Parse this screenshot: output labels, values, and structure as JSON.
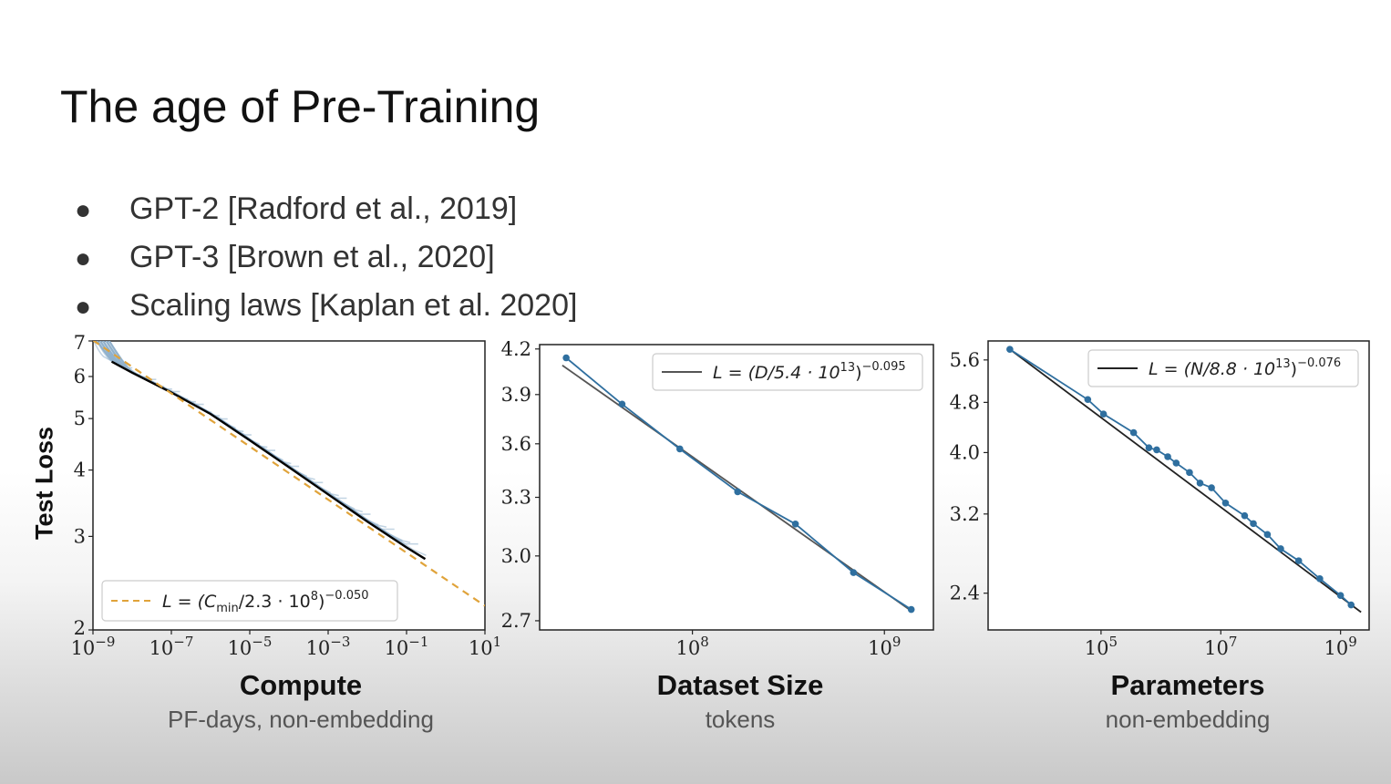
{
  "slide": {
    "title": "The age of Pre-Training",
    "bullets": [
      "GPT-2 [Radford et al., 2019]",
      "GPT-3 [Brown et al., 2020]",
      "Scaling laws [Kaplan et al. 2020]"
    ],
    "bullet_glyph": "●"
  },
  "chart_data": [
    {
      "type": "line",
      "xscale": "log",
      "yscale": "log",
      "xlim": [
        1e-09,
        10
      ],
      "ylim": [
        2,
        7
      ],
      "x_ticks": [
        {
          "base": "10",
          "exp": "−9"
        },
        {
          "base": "10",
          "exp": "−7"
        },
        {
          "base": "10",
          "exp": "−5"
        },
        {
          "base": "10",
          "exp": "−3"
        },
        {
          "base": "10",
          "exp": "−1"
        },
        {
          "base": "10",
          "exp": "1"
        }
      ],
      "y_ticks": [
        "2",
        "3",
        "4",
        "5",
        "6",
        "7"
      ],
      "ylabel": "Test Loss",
      "xlabel": "Compute",
      "xlabel_sub": "PF-days, non-embedding",
      "legend": {
        "placement": "bottom-left",
        "prefix": "L = (C",
        "sub": "min",
        "mid": "/2.3 · 10",
        "sup1": "8",
        "close": ")",
        "sup2": "−0.050"
      },
      "fit_color": "#e0a33a",
      "frontier_color": "#000000",
      "curve_color": "#8fb0cc",
      "fit": {
        "x": [
          1e-09,
          10
        ],
        "y": [
          7.02,
          2.22
        ]
      },
      "frontier": {
        "x": [
          3e-09,
          1e-08,
          1e-07,
          1e-06,
          1e-05,
          0.0001,
          0.001,
          0.01,
          0.1,
          0.3
        ],
        "y": [
          6.4,
          6.1,
          5.6,
          5.1,
          4.55,
          4.05,
          3.6,
          3.2,
          2.86,
          2.72
        ]
      },
      "learning_curves_count": 40
    },
    {
      "type": "line",
      "xscale": "log",
      "yscale": "log",
      "xlim": [
        16000000.0,
        1800000000.0
      ],
      "ylim": [
        2.66,
        4.23
      ],
      "x_ticks": [
        {
          "base": "10",
          "exp": "8",
          "value": 100000000.0
        },
        {
          "base": "10",
          "exp": "9",
          "value": 1000000000.0
        }
      ],
      "y_ticks": [
        "2.7",
        "3.0",
        "3.3",
        "3.6",
        "3.9",
        "4.2"
      ],
      "xlabel": "Dataset Size",
      "xlabel_sub": "tokens",
      "legend": {
        "placement": "top-right",
        "prefix": "L = (D/5.4 · 10",
        "sup1": "13",
        "close": ")",
        "sup2": "−0.095"
      },
      "series_color": "#2f6f9f",
      "fit_color": "#555555",
      "x": [
        22000000.0,
        43000000.0,
        86000000.0,
        172000000.0,
        344000000.0,
        690000000.0,
        1380000000.0
      ],
      "y": [
        4.14,
        3.84,
        3.57,
        3.33,
        3.16,
        2.92,
        2.75
      ],
      "fit": {
        "x": [
          21000000.0,
          1400000000.0
        ],
        "y": [
          4.09,
          2.74
        ]
      }
    },
    {
      "type": "line",
      "xscale": "log",
      "yscale": "log",
      "xlim": [
        1300.0,
        3000000000.0
      ],
      "ylim": [
        2.1,
        6.0
      ],
      "x_ticks": [
        {
          "base": "10",
          "exp": "5",
          "value": 100000.0
        },
        {
          "base": "10",
          "exp": "7",
          "value": 10000000.0
        },
        {
          "base": "10",
          "exp": "9",
          "value": 1000000000.0
        }
      ],
      "y_ticks": [
        "2.4",
        "3.2",
        "4.0",
        "4.8",
        "5.6"
      ],
      "xlabel": "Parameters",
      "xlabel_sub": "non-embedding",
      "legend": {
        "placement": "top-right",
        "prefix": "L = (N/8.8 · 10",
        "sup1": "13",
        "close": ")",
        "sup2": "−0.076"
      },
      "series_color": "#2f6f9f",
      "fit_color": "#222222",
      "x": [
        3000.0,
        60000.0,
        110000.0,
        350000.0,
        630000.0,
        850000.0,
        1300000.0,
        1800000.0,
        3000000.0,
        4500000.0,
        7000000.0,
        12000000.0,
        25000000.0,
        35000000.0,
        60000000.0,
        100000000.0,
        200000000.0,
        450000000.0,
        1000000000.0,
        1500000000.0
      ],
      "y": [
        5.82,
        4.85,
        4.6,
        4.3,
        4.07,
        4.04,
        3.94,
        3.85,
        3.72,
        3.58,
        3.52,
        3.33,
        3.18,
        3.09,
        2.97,
        2.82,
        2.7,
        2.53,
        2.38,
        2.3
      ],
      "fit": {
        "x": [
          3000.0,
          2200000000.0
        ],
        "y": [
          5.82,
          2.24
        ]
      }
    }
  ]
}
